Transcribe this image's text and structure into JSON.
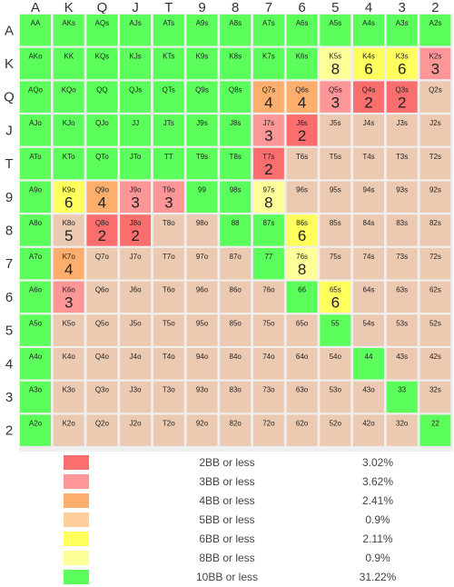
{
  "chart_data": {
    "type": "heatmap",
    "title": "",
    "xlabel": "",
    "ylabel": "",
    "ranks": [
      "A",
      "K",
      "Q",
      "J",
      "T",
      "9",
      "8",
      "7",
      "6",
      "5",
      "4",
      "3",
      "2"
    ],
    "legend": [
      {
        "label": "2BB or less",
        "percent": "3.02%",
        "color": "#fb6e6e"
      },
      {
        "label": "3BB or less",
        "percent": "3.62%",
        "color": "#fd9797"
      },
      {
        "label": "4BB or less",
        "percent": "2.41%",
        "color": "#feae6c"
      },
      {
        "label": "5BB or less",
        "percent": "0.9%",
        "color": "#fdcd9a"
      },
      {
        "label": "6BB or less",
        "percent": "2.11%",
        "color": "#ffff5e"
      },
      {
        "label": "8BB or less",
        "percent": "0.9%",
        "color": "#ffff9a"
      },
      {
        "label": "10BB or less",
        "percent": "31.22%",
        "color": "#5cfe5c"
      }
    ],
    "cells": [
      [
        {
          "hand": "AA",
          "level": "10"
        },
        {
          "hand": "AKs",
          "level": "10"
        },
        {
          "hand": "AQs",
          "level": "10"
        },
        {
          "hand": "AJs",
          "level": "10"
        },
        {
          "hand": "ATs",
          "level": "10"
        },
        {
          "hand": "A9s",
          "level": "10"
        },
        {
          "hand": "A8s",
          "level": "10"
        },
        {
          "hand": "A7s",
          "level": "10"
        },
        {
          "hand": "A6s",
          "level": "10"
        },
        {
          "hand": "A5s",
          "level": "10"
        },
        {
          "hand": "A4s",
          "level": "10"
        },
        {
          "hand": "A3s",
          "level": "10"
        },
        {
          "hand": "A2s",
          "level": "10"
        }
      ],
      [
        {
          "hand": "AKo",
          "level": "10"
        },
        {
          "hand": "KK",
          "level": "10"
        },
        {
          "hand": "KQs",
          "level": "10"
        },
        {
          "hand": "KJs",
          "level": "10"
        },
        {
          "hand": "KTs",
          "level": "10"
        },
        {
          "hand": "K9s",
          "level": "10"
        },
        {
          "hand": "K8s",
          "level": "10"
        },
        {
          "hand": "K7s",
          "level": "10"
        },
        {
          "hand": "K6s",
          "level": "10"
        },
        {
          "hand": "K5s",
          "level": "8",
          "value": "8"
        },
        {
          "hand": "K4s",
          "level": "6",
          "value": "6"
        },
        {
          "hand": "K3s",
          "level": "6",
          "value": "6"
        },
        {
          "hand": "K2s",
          "level": "3",
          "value": "3"
        }
      ],
      [
        {
          "hand": "AQo",
          "level": "10"
        },
        {
          "hand": "KQo",
          "level": "10"
        },
        {
          "hand": "QQ",
          "level": "10"
        },
        {
          "hand": "QJs",
          "level": "10"
        },
        {
          "hand": "QTs",
          "level": "10"
        },
        {
          "hand": "Q9s",
          "level": "10"
        },
        {
          "hand": "Q8s",
          "level": "10"
        },
        {
          "hand": "Q7s",
          "level": "4",
          "value": "4"
        },
        {
          "hand": "Q6s",
          "level": "4",
          "value": "4"
        },
        {
          "hand": "Q5s",
          "level": "3",
          "value": "3"
        },
        {
          "hand": "Q4s",
          "level": "2",
          "value": "2"
        },
        {
          "hand": "Q3s",
          "level": "2",
          "value": "2"
        },
        {
          "hand": "Q2s",
          "level": "5"
        }
      ],
      [
        {
          "hand": "AJo",
          "level": "10"
        },
        {
          "hand": "KJo",
          "level": "10"
        },
        {
          "hand": "QJo",
          "level": "10"
        },
        {
          "hand": "JJ",
          "level": "10"
        },
        {
          "hand": "JTs",
          "level": "10"
        },
        {
          "hand": "J9s",
          "level": "10"
        },
        {
          "hand": "J8s",
          "level": "10"
        },
        {
          "hand": "J7s",
          "level": "3",
          "value": "3"
        },
        {
          "hand": "J6s",
          "level": "2",
          "value": "2"
        },
        {
          "hand": "J5s",
          "level": "5"
        },
        {
          "hand": "J4s",
          "level": "5"
        },
        {
          "hand": "J3s",
          "level": "5"
        },
        {
          "hand": "J2s",
          "level": "5"
        }
      ],
      [
        {
          "hand": "ATo",
          "level": "10"
        },
        {
          "hand": "KTo",
          "level": "10"
        },
        {
          "hand": "QTo",
          "level": "10"
        },
        {
          "hand": "JTo",
          "level": "10"
        },
        {
          "hand": "TT",
          "level": "10"
        },
        {
          "hand": "T9s",
          "level": "10"
        },
        {
          "hand": "T8s",
          "level": "10"
        },
        {
          "hand": "T7s",
          "level": "2",
          "value": "2"
        },
        {
          "hand": "T6s",
          "level": "5"
        },
        {
          "hand": "T5s",
          "level": "5"
        },
        {
          "hand": "T4s",
          "level": "5"
        },
        {
          "hand": "T3s",
          "level": "5"
        },
        {
          "hand": "T2s",
          "level": "5"
        }
      ],
      [
        {
          "hand": "A9o",
          "level": "10"
        },
        {
          "hand": "K9o",
          "level": "6",
          "value": "6"
        },
        {
          "hand": "Q9o",
          "level": "4",
          "value": "4"
        },
        {
          "hand": "J9o",
          "level": "3",
          "value": "3"
        },
        {
          "hand": "T9o",
          "level": "3",
          "value": "3"
        },
        {
          "hand": "99",
          "level": "10"
        },
        {
          "hand": "98s",
          "level": "10"
        },
        {
          "hand": "97s",
          "level": "8",
          "value": "8"
        },
        {
          "hand": "96s",
          "level": "5"
        },
        {
          "hand": "95s",
          "level": "5"
        },
        {
          "hand": "94s",
          "level": "5"
        },
        {
          "hand": "93s",
          "level": "5"
        },
        {
          "hand": "92s",
          "level": "5"
        }
      ],
      [
        {
          "hand": "A8o",
          "level": "10"
        },
        {
          "hand": "K8o",
          "level": "5",
          "value": "5"
        },
        {
          "hand": "Q8o",
          "level": "2",
          "value": "2"
        },
        {
          "hand": "J8o",
          "level": "2",
          "value": "2"
        },
        {
          "hand": "T8o",
          "level": "5"
        },
        {
          "hand": "98o",
          "level": "5"
        },
        {
          "hand": "88",
          "level": "10"
        },
        {
          "hand": "87s",
          "level": "10"
        },
        {
          "hand": "86s",
          "level": "6",
          "value": "6"
        },
        {
          "hand": "85s",
          "level": "5"
        },
        {
          "hand": "84s",
          "level": "5"
        },
        {
          "hand": "83s",
          "level": "5"
        },
        {
          "hand": "82s",
          "level": "5"
        }
      ],
      [
        {
          "hand": "A7o",
          "level": "10"
        },
        {
          "hand": "K7o",
          "level": "4",
          "value": "4"
        },
        {
          "hand": "Q7o",
          "level": "5"
        },
        {
          "hand": "J7o",
          "level": "5"
        },
        {
          "hand": "T7o",
          "level": "5"
        },
        {
          "hand": "97o",
          "level": "5"
        },
        {
          "hand": "87o",
          "level": "5"
        },
        {
          "hand": "77",
          "level": "10"
        },
        {
          "hand": "76s",
          "level": "8",
          "value": "8"
        },
        {
          "hand": "75s",
          "level": "5"
        },
        {
          "hand": "74s",
          "level": "5"
        },
        {
          "hand": "73s",
          "level": "5"
        },
        {
          "hand": "72s",
          "level": "5"
        }
      ],
      [
        {
          "hand": "A6o",
          "level": "10"
        },
        {
          "hand": "K6o",
          "level": "3",
          "value": "3"
        },
        {
          "hand": "Q6o",
          "level": "5"
        },
        {
          "hand": "J6o",
          "level": "5"
        },
        {
          "hand": "T6o",
          "level": "5"
        },
        {
          "hand": "96o",
          "level": "5"
        },
        {
          "hand": "86o",
          "level": "5"
        },
        {
          "hand": "76o",
          "level": "5"
        },
        {
          "hand": "66",
          "level": "10"
        },
        {
          "hand": "65s",
          "level": "6",
          "value": "6"
        },
        {
          "hand": "64s",
          "level": "5"
        },
        {
          "hand": "63s",
          "level": "5"
        },
        {
          "hand": "62s",
          "level": "5"
        }
      ],
      [
        {
          "hand": "A5o",
          "level": "10"
        },
        {
          "hand": "K5o",
          "level": "5"
        },
        {
          "hand": "Q5o",
          "level": "5"
        },
        {
          "hand": "J5o",
          "level": "5"
        },
        {
          "hand": "T5o",
          "level": "5"
        },
        {
          "hand": "95o",
          "level": "5"
        },
        {
          "hand": "85o",
          "level": "5"
        },
        {
          "hand": "75o",
          "level": "5"
        },
        {
          "hand": "65o",
          "level": "5"
        },
        {
          "hand": "55",
          "level": "10"
        },
        {
          "hand": "54s",
          "level": "5"
        },
        {
          "hand": "53s",
          "level": "5"
        },
        {
          "hand": "52s",
          "level": "5"
        }
      ],
      [
        {
          "hand": "A4o",
          "level": "10"
        },
        {
          "hand": "K4o",
          "level": "5"
        },
        {
          "hand": "Q4o",
          "level": "5"
        },
        {
          "hand": "J4o",
          "level": "5"
        },
        {
          "hand": "T4o",
          "level": "5"
        },
        {
          "hand": "94o",
          "level": "5"
        },
        {
          "hand": "84o",
          "level": "5"
        },
        {
          "hand": "74o",
          "level": "5"
        },
        {
          "hand": "64o",
          "level": "5"
        },
        {
          "hand": "54o",
          "level": "5"
        },
        {
          "hand": "44",
          "level": "10"
        },
        {
          "hand": "43s",
          "level": "5"
        },
        {
          "hand": "42s",
          "level": "5"
        }
      ],
      [
        {
          "hand": "A3o",
          "level": "10"
        },
        {
          "hand": "K3o",
          "level": "5"
        },
        {
          "hand": "Q3o",
          "level": "5"
        },
        {
          "hand": "J3o",
          "level": "5"
        },
        {
          "hand": "T3o",
          "level": "5"
        },
        {
          "hand": "93o",
          "level": "5"
        },
        {
          "hand": "83o",
          "level": "5"
        },
        {
          "hand": "73o",
          "level": "5"
        },
        {
          "hand": "63o",
          "level": "5"
        },
        {
          "hand": "53o",
          "level": "5"
        },
        {
          "hand": "43o",
          "level": "5"
        },
        {
          "hand": "33",
          "level": "10"
        },
        {
          "hand": "32s",
          "level": "5"
        }
      ],
      [
        {
          "hand": "A2o",
          "level": "10"
        },
        {
          "hand": "K2o",
          "level": "5"
        },
        {
          "hand": "Q2o",
          "level": "5"
        },
        {
          "hand": "J2o",
          "level": "5"
        },
        {
          "hand": "T2o",
          "level": "5"
        },
        {
          "hand": "92o",
          "level": "5"
        },
        {
          "hand": "82o",
          "level": "5"
        },
        {
          "hand": "72o",
          "level": "5"
        },
        {
          "hand": "62o",
          "level": "5"
        },
        {
          "hand": "52o",
          "level": "5"
        },
        {
          "hand": "42o",
          "level": "5"
        },
        {
          "hand": "32o",
          "level": "5"
        },
        {
          "hand": "22",
          "level": "10"
        }
      ]
    ]
  },
  "level_colors": {
    "2": "#fb6e6e",
    "3": "#fd9797",
    "4": "#feae6c",
    "5": "#eccab2",
    "6": "#ffff5e",
    "8": "#ffff9a",
    "10": "#5cfe5c"
  }
}
